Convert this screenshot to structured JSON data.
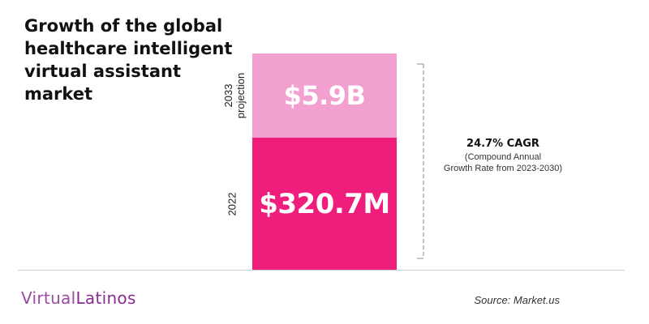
{
  "title_lines": [
    "Growth of the global",
    "healthcare intelligent",
    "virtual assistant",
    "market"
  ],
  "chart_data": {
    "type": "bar",
    "stacked": true,
    "categories": [
      "2022",
      "2033 projection"
    ],
    "values_usd": [
      320700000,
      5900000000
    ],
    "value_labels": [
      "$320.7M",
      "$5.9B"
    ],
    "colors": [
      "#ef1d7c",
      "#f2a0cf"
    ]
  },
  "bars": {
    "top": {
      "label_lines": [
        "2033",
        "projection"
      ],
      "value": "$5.9B"
    },
    "bottom": {
      "label": "2022",
      "value": "$320.7M"
    }
  },
  "cagr": {
    "heading": "24.7% CAGR",
    "sub_lines": [
      "(Compound Annual",
      "Growth Rate from 2023-2030)"
    ]
  },
  "logo": {
    "part1": "Virtual",
    "part2": "Latinos"
  },
  "source": "Source: Market.us",
  "colors": {
    "accent": "#ef1d7c",
    "accent_light": "#f2a0cf",
    "logo": "#8a2b94"
  }
}
